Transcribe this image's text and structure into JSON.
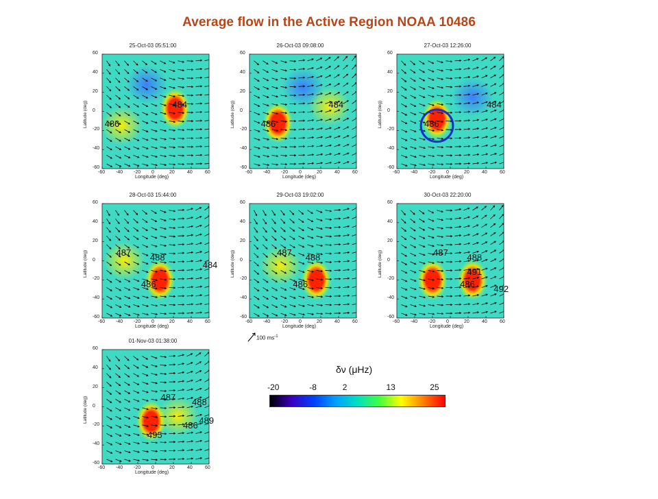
{
  "title": "Average flow in the Active Region NOAA 10486",
  "axes": {
    "xlabel": "Longitude (deg)",
    "ylabel": "Latitude (deg)",
    "xticks": [
      "-60",
      "-40",
      "-20",
      "0",
      "20",
      "40",
      "60"
    ],
    "yticks": [
      "60",
      "40",
      "20",
      "0",
      "-20",
      "-40",
      "-60"
    ]
  },
  "colors": {
    "background": "#3fd9c4",
    "positive": "#ff2200",
    "negative": "#3a7bff",
    "arrow": "#000000",
    "circle": "#1a2fc8",
    "title": "#b5471a"
  },
  "chart_data": [
    {
      "type": "heatmap",
      "title": "25-Oct-03 05:51:00",
      "xlim": [
        -60,
        60
      ],
      "ylim": [
        -60,
        60
      ],
      "labels": [
        {
          "text": "484",
          "lon": 28,
          "lat": 7
        },
        {
          "text": "486",
          "lon": -48,
          "lat": -13
        }
      ],
      "blobs": [
        {
          "lon": 22,
          "lat": 3,
          "value": 25
        },
        {
          "lon": -38,
          "lat": -15,
          "value": 13
        },
        {
          "lon": -10,
          "lat": 28,
          "value": -8
        }
      ]
    },
    {
      "type": "heatmap",
      "title": "26-Oct-03 09:08:00",
      "xlim": [
        -60,
        60
      ],
      "ylim": [
        -60,
        60
      ],
      "labels": [
        {
          "text": "484",
          "lon": 38,
          "lat": 7
        },
        {
          "text": "486",
          "lon": -38,
          "lat": -13
        }
      ],
      "blobs": [
        {
          "lon": -28,
          "lat": -12,
          "value": 25
        },
        {
          "lon": 0,
          "lat": 25,
          "value": -8
        },
        {
          "lon": 30,
          "lat": 5,
          "value": 13
        }
      ]
    },
    {
      "type": "heatmap",
      "title": "27-Oct-03 12:26:00",
      "xlim": [
        -60,
        60
      ],
      "ylim": [
        -60,
        60
      ],
      "labels": [
        {
          "text": "484",
          "lon": 50,
          "lat": 7
        },
        {
          "text": "486",
          "lon": -20,
          "lat": -13
        }
      ],
      "blobs": [
        {
          "lon": -15,
          "lat": -8,
          "value": 25
        },
        {
          "lon": 25,
          "lat": 15,
          "value": -8
        }
      ],
      "circle": {
        "lon": -15,
        "lat": -15,
        "r_deg": 18
      }
    },
    {
      "type": "heatmap",
      "title": "28-Oct-03 15:44:00",
      "xlim": [
        -60,
        60
      ],
      "ylim": [
        -60,
        60
      ],
      "labels": [
        {
          "text": "487",
          "lon": -35,
          "lat": 8
        },
        {
          "text": "488",
          "lon": 3,
          "lat": 3
        },
        {
          "text": "484",
          "lon": 62,
          "lat": -5
        },
        {
          "text": "486",
          "lon": -7,
          "lat": -25
        }
      ],
      "blobs": [
        {
          "lon": 5,
          "lat": -20,
          "value": 25
        },
        {
          "lon": -35,
          "lat": 0,
          "value": 13
        }
      ]
    },
    {
      "type": "heatmap",
      "title": "29-Oct-03 19:02:00",
      "xlim": [
        -60,
        60
      ],
      "ylim": [
        -60,
        60
      ],
      "labels": [
        {
          "text": "487",
          "lon": -20,
          "lat": 8
        },
        {
          "text": "488",
          "lon": 12,
          "lat": 3
        },
        {
          "text": "486",
          "lon": -2,
          "lat": -25
        }
      ],
      "blobs": [
        {
          "lon": 15,
          "lat": -20,
          "value": 25
        },
        {
          "lon": -25,
          "lat": -5,
          "value": 13
        }
      ]
    },
    {
      "type": "heatmap",
      "title": "30-Oct-03 22:20:00",
      "xlim": [
        -60,
        60
      ],
      "ylim": [
        -60,
        60
      ],
      "labels": [
        {
          "text": "487",
          "lon": -10,
          "lat": 8
        },
        {
          "text": "488",
          "lon": 28,
          "lat": 3
        },
        {
          "text": "491",
          "lon": 28,
          "lat": -12
        },
        {
          "text": "486",
          "lon": 20,
          "lat": -25
        },
        {
          "text": "492",
          "lon": 58,
          "lat": -30
        }
      ],
      "blobs": [
        {
          "lon": -20,
          "lat": -20,
          "value": 25
        },
        {
          "lon": 25,
          "lat": -20,
          "value": 22
        }
      ]
    },
    {
      "type": "heatmap",
      "title": "01-Nov-03 01:38:00",
      "xlim": [
        -60,
        60
      ],
      "ylim": [
        -60,
        60
      ],
      "labels": [
        {
          "text": "487",
          "lon": 15,
          "lat": 10
        },
        {
          "text": "488",
          "lon": 50,
          "lat": 5
        },
        {
          "text": "489",
          "lon": 58,
          "lat": -15
        },
        {
          "text": "486",
          "lon": 40,
          "lat": -20
        },
        {
          "text": "495",
          "lon": 0,
          "lat": -30
        }
      ],
      "blobs": [
        {
          "lon": -5,
          "lat": -15,
          "value": 25
        },
        {
          "lon": 25,
          "lat": -10,
          "value": 13
        }
      ]
    }
  ],
  "arrow_scale": {
    "label": "100 ms",
    "exponent": "-1"
  },
  "colorbar": {
    "title": "δν (μHz)",
    "ticks": [
      "-20",
      "-8",
      "2",
      "13",
      "25"
    ],
    "stops": [
      "#000000",
      "#3a00c0",
      "#0040ff",
      "#00a0ff",
      "#00e0c0",
      "#40ff40",
      "#ffff00",
      "#ff8000",
      "#ff0000"
    ]
  }
}
